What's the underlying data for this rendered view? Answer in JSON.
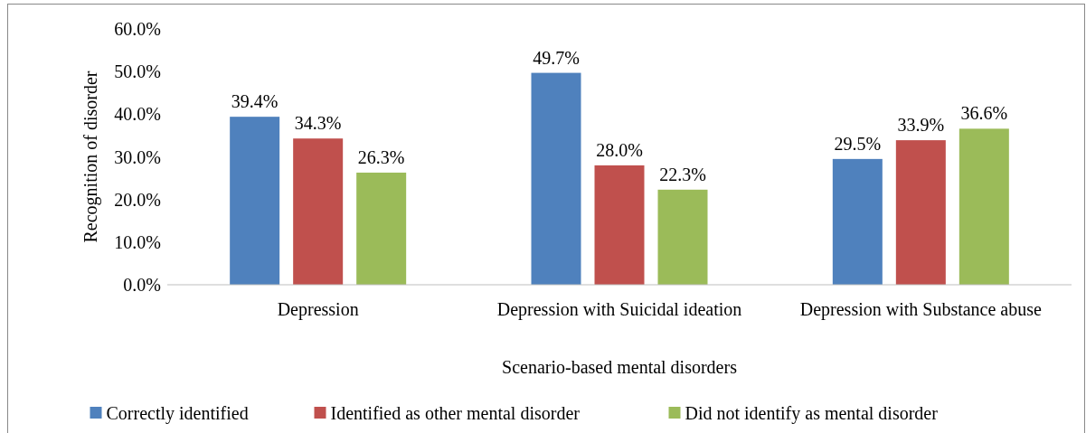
{
  "chart_data": {
    "type": "bar",
    "xlabel": "Scenario-based mental disorders",
    "ylabel": "Recognition of disorder",
    "categories": [
      "Depression",
      "Depression with Suicidal ideation",
      "Depression with Substance abuse"
    ],
    "series": [
      {
        "name": "Correctly identified",
        "color": "#4f81bd",
        "values": [
          39.4,
          49.7,
          29.5
        ],
        "value_labels": [
          "39.4%",
          "49.7%",
          "29.5%"
        ]
      },
      {
        "name": "Identified as other mental disorder",
        "color": "#c0504d",
        "values": [
          34.3,
          28.0,
          33.9
        ],
        "value_labels": [
          "34.3%",
          "28.0%",
          "33.9%"
        ]
      },
      {
        "name": "Did not identify as mental disorder",
        "color": "#9bbb59",
        "values": [
          26.3,
          22.3,
          36.6
        ],
        "value_labels": [
          "26.3%",
          "22.3%",
          "36.6%"
        ]
      }
    ],
    "ylim": [
      0,
      60
    ],
    "yticks": [
      {
        "value": 0,
        "label": "0.0%"
      },
      {
        "value": 10,
        "label": "10.0%"
      },
      {
        "value": 20,
        "label": "20.0%"
      },
      {
        "value": 30,
        "label": "30.0%"
      },
      {
        "value": 40,
        "label": "40.0%"
      },
      {
        "value": 50,
        "label": "50.0%"
      },
      {
        "value": 60,
        "label": "60.0%"
      }
    ],
    "grid": false,
    "legend": "bottom"
  }
}
